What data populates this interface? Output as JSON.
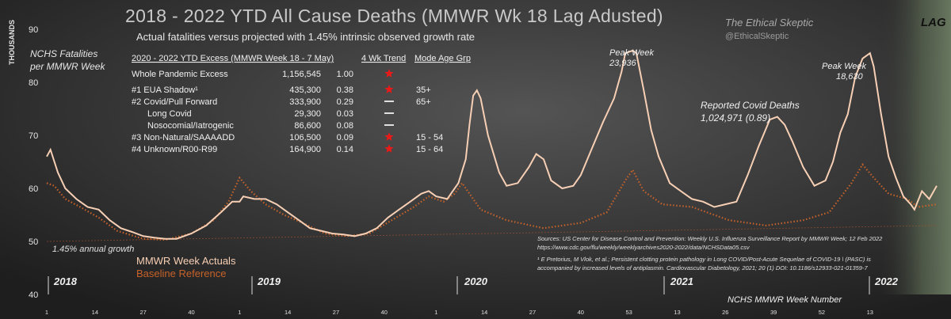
{
  "title": "2018 - 2022 YTD All Cause Deaths (MMWR Wk 18 Lag Adusted)",
  "subtitle": "Actual fatalities versus projected with 1.45% intrinsic observed growth  rate",
  "brand": {
    "name": "The Ethical Skeptic",
    "handle": "@EthicalSkeptic"
  },
  "y_axis": {
    "unit": "THOUSANDS",
    "title_line1": "NCHS Fatalities",
    "title_line2": "per MMWR Week",
    "ticks": [
      "90",
      "80",
      "70",
      "60",
      "50",
      "40"
    ]
  },
  "x_axis": {
    "title": "NCHS MMWR Week Number"
  },
  "lag_label": "LAG",
  "growth_label": "1.45% annual growth",
  "legend": {
    "actual": "MMWR Week Actuals",
    "baseline": "Baseline Reference"
  },
  "year_labels": [
    "2018",
    "2019",
    "2020",
    "2021",
    "2022"
  ],
  "table": {
    "headers": [
      "2020 - 2022 YTD Excess (MMWR Week 18 -  7 May)",
      "4 Wk Trend",
      "Mode Age Grp"
    ],
    "rows": [
      {
        "label": "Whole  Pandemic Excess",
        "value": "1,156,545",
        "ratio": "1.00",
        "trend": "up",
        "age": ""
      },
      {
        "label": "#1  EUA Shadow¹",
        "value": "435,300",
        "ratio": "0.38",
        "trend": "up",
        "age": "35+"
      },
      {
        "label": "#2  Covid/Pull  Forward",
        "value": "333,900",
        "ratio": "0.29",
        "trend": "flat",
        "age": "65+"
      },
      {
        "label": "Long Covid",
        "value": "29,300",
        "ratio": "0.03",
        "trend": "flat",
        "age": ""
      },
      {
        "label": "Nosocomial/Iatrogenic",
        "value": "86,600",
        "ratio": "0.08",
        "trend": "flat",
        "age": ""
      },
      {
        "label": "#3  Non-Natural/SAAAADD",
        "value": "106,500",
        "ratio": "0.09",
        "trend": "up",
        "age": "15 - 54"
      },
      {
        "label": "#4  Unknown/R00-R99",
        "value": "164,900",
        "ratio": "0.14",
        "trend": "up",
        "age": "15 - 64"
      }
    ]
  },
  "annotations": {
    "peak1_title": "Peak Week",
    "peak1_value": "23,936",
    "peak2_title": "Peak Week",
    "peak2_value": "18,630",
    "covid_title": "Reported Covid Deaths",
    "covid_value": "1,024,971  (0.89)"
  },
  "sources": {
    "line1": "Sources: US Center for Disease Control and Prevention: Weekly U.S. Influenza Surveillance  Report by MMWR Week;  12 Feb 2022",
    "line2": "https://www.cdc.gov/flu/weekly/weeklyarchives2020-2022/data/NCHSData05.csv",
    "line3": "¹ E Pretorius, M Vlok, et al.; Persistent clotting protein pathology in Long COVID/Post-Acute Sequelae of COVID-19 \\ (PASC) is",
    "line4": "accompanied by increased levels of antiplasmin. Cardiovascular Diabetology, 2021; 20 (1) DOI: 10.1186/s12933-021-01359-7"
  },
  "colors": {
    "background": "#2b2b2b",
    "actual": "#f7cfb4",
    "covid": "#c7622a",
    "baseline": "#a0522d",
    "trend_up": "#e81a1a",
    "title": "#c9c9c9",
    "year_label": "#f0f0f0",
    "lag_band": "#56624e"
  },
  "chart_data": {
    "type": "line",
    "title": "2018 - 2022 YTD All Cause Deaths (MMWR Wk 18 Lag Adusted)",
    "xlabel": "NCHS MMWR Week Number",
    "ylabel": "NCHS Fatalities per MMWR Week (THOUSANDS)",
    "ylim": [
      40,
      93
    ],
    "grid": false,
    "legend": "bottom-left",
    "x_tick_labels": [
      "1",
      "14",
      "27",
      "40",
      "1",
      "14",
      "27",
      "40",
      "1",
      "14",
      "27",
      "40",
      "53",
      "13",
      "26",
      "39",
      "52",
      "13"
    ],
    "series": [
      {
        "name": "MMWR Week Actuals",
        "style": "solid",
        "points": [
          [
            1,
            66.0
          ],
          [
            2,
            67.3
          ],
          [
            4,
            63.0
          ],
          [
            6,
            60.0
          ],
          [
            9,
            58.0
          ],
          [
            12,
            56.5
          ],
          [
            15,
            56.0
          ],
          [
            18,
            54.0
          ],
          [
            21,
            52.5
          ],
          [
            24,
            51.8
          ],
          [
            27,
            51.0
          ],
          [
            30,
            50.7
          ],
          [
            33,
            50.5
          ],
          [
            36,
            50.5
          ],
          [
            40,
            51.5
          ],
          [
            44,
            53.0
          ],
          [
            48,
            55.5
          ],
          [
            51,
            57.5
          ],
          [
            53,
            57.5
          ],
          [
            54,
            58.5
          ],
          [
            57,
            58.0
          ],
          [
            60,
            58.0
          ],
          [
            63,
            57.0
          ],
          [
            66,
            55.5
          ],
          [
            69,
            54.0
          ],
          [
            72,
            52.5
          ],
          [
            75,
            52.0
          ],
          [
            78,
            51.5
          ],
          [
            81,
            51.3
          ],
          [
            84,
            51.0
          ],
          [
            87,
            51.5
          ],
          [
            90,
            52.5
          ],
          [
            93,
            54.5
          ],
          [
            96,
            56.0
          ],
          [
            99,
            57.5
          ],
          [
            102,
            59.0
          ],
          [
            104,
            59.5
          ],
          [
            106,
            58.5
          ],
          [
            109,
            58.0
          ],
          [
            110,
            59.0
          ],
          [
            112,
            61.0
          ],
          [
            114,
            65.5
          ],
          [
            115,
            72.0
          ],
          [
            116,
            77.5
          ],
          [
            117,
            78.5
          ],
          [
            118,
            77.0
          ],
          [
            120,
            70.0
          ],
          [
            123,
            63.0
          ],
          [
            125,
            60.5
          ],
          [
            128,
            61.0
          ],
          [
            131,
            64.0
          ],
          [
            133,
            66.5
          ],
          [
            135,
            65.5
          ],
          [
            137,
            61.5
          ],
          [
            140,
            60.0
          ],
          [
            143,
            60.5
          ],
          [
            145,
            62.5
          ],
          [
            148,
            67.5
          ],
          [
            151,
            72.5
          ],
          [
            154,
            77.0
          ],
          [
            156,
            82.0
          ],
          [
            157,
            85.5
          ],
          [
            159,
            86.0
          ],
          [
            160,
            85.5
          ],
          [
            162,
            78.5
          ],
          [
            164,
            71.0
          ],
          [
            166,
            66.0
          ],
          [
            169,
            61.0
          ],
          [
            172,
            59.5
          ],
          [
            175,
            58.0
          ],
          [
            178,
            57.5
          ],
          [
            181,
            56.5
          ],
          [
            184,
            57.0
          ],
          [
            187,
            57.5
          ],
          [
            190,
            62.5
          ],
          [
            193,
            68.0
          ],
          [
            196,
            73.0
          ],
          [
            198,
            73.5
          ],
          [
            200,
            72.0
          ],
          [
            202,
            69.0
          ],
          [
            205,
            64.0
          ],
          [
            208,
            60.5
          ],
          [
            211,
            61.5
          ],
          [
            213,
            65.0
          ],
          [
            215,
            70.5
          ],
          [
            217,
            74.0
          ],
          [
            219,
            81.0
          ],
          [
            221,
            84.5
          ],
          [
            223,
            85.5
          ],
          [
            224,
            83.0
          ],
          [
            226,
            74.0
          ],
          [
            228,
            66.0
          ],
          [
            230,
            62.0
          ],
          [
            232,
            58.5
          ],
          [
            234,
            57.0
          ],
          [
            235,
            56.0
          ],
          [
            237,
            59.5
          ],
          [
            239,
            58.0
          ],
          [
            241,
            60.5
          ]
        ]
      },
      {
        "name": "Reported Covid Deaths",
        "style": "dotted",
        "points": [
          [
            1,
            61.0
          ],
          [
            3,
            60.5
          ],
          [
            6,
            58.0
          ],
          [
            10,
            56.5
          ],
          [
            15,
            54.5
          ],
          [
            20,
            52.0
          ],
          [
            27,
            50.5
          ],
          [
            33,
            50.3
          ],
          [
            40,
            51.5
          ],
          [
            46,
            54.0
          ],
          [
            50,
            57.5
          ],
          [
            52,
            60.5
          ],
          [
            53,
            62.0
          ],
          [
            56,
            59.5
          ],
          [
            60,
            57.0
          ],
          [
            65,
            55.0
          ],
          [
            70,
            53.5
          ],
          [
            76,
            51.5
          ],
          [
            82,
            51.0
          ],
          [
            88,
            51.5
          ],
          [
            94,
            54.0
          ],
          [
            100,
            56.5
          ],
          [
            104,
            58.5
          ],
          [
            108,
            57.5
          ],
          [
            111,
            59.0
          ],
          [
            113,
            61.0
          ],
          [
            118,
            56.0
          ],
          [
            125,
            54.0
          ],
          [
            135,
            52.5
          ],
          [
            145,
            53.5
          ],
          [
            152,
            55.5
          ],
          [
            157,
            61.5
          ],
          [
            159,
            63.5
          ],
          [
            162,
            59.5
          ],
          [
            167,
            57.0
          ],
          [
            175,
            56.5
          ],
          [
            185,
            54.0
          ],
          [
            195,
            53.0
          ],
          [
            205,
            54.0
          ],
          [
            212,
            55.5
          ],
          [
            218,
            61.0
          ],
          [
            221,
            64.5
          ],
          [
            224,
            62.0
          ],
          [
            228,
            59.0
          ],
          [
            233,
            58.0
          ],
          [
            236,
            56.5
          ],
          [
            241,
            57.0
          ]
        ]
      },
      {
        "name": "Baseline Reference",
        "style": "thin",
        "points": [
          [
            1,
            50.0
          ],
          [
            241,
            53.0
          ]
        ]
      }
    ]
  }
}
